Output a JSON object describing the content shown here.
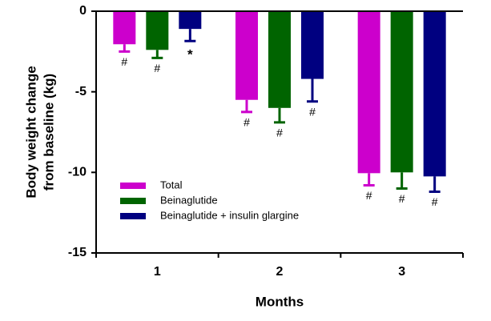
{
  "chart_data": {
    "type": "bar",
    "x_label": "Months",
    "y_label": [
      "Body weight  change",
      "from baseline (kg)"
    ],
    "categories": [
      "1",
      "2",
      "3"
    ],
    "ylim": [
      -15,
      0
    ],
    "yticks": [
      0,
      -5,
      -10,
      -15
    ],
    "series": [
      {
        "name": "Total",
        "color": "#cc00cc",
        "values": [
          -2.05,
          -5.5,
          -10.05
        ],
        "errors": [
          0.45,
          0.75,
          0.75
        ],
        "annotations": [
          "#",
          "#",
          "#"
        ]
      },
      {
        "name": "Beinaglutide",
        "color": "#006400",
        "values": [
          -2.4,
          -6.0,
          -10.0
        ],
        "errors": [
          0.5,
          0.9,
          1.0
        ],
        "annotations": [
          "#",
          "#",
          "#"
        ]
      },
      {
        "name": "Beinaglutide + insulin glargine",
        "color": "#000080",
        "values": [
          -1.1,
          -4.2,
          -10.25
        ],
        "errors": [
          0.75,
          1.4,
          0.95
        ],
        "annotations": [
          "*",
          "#",
          "#"
        ]
      }
    ]
  }
}
